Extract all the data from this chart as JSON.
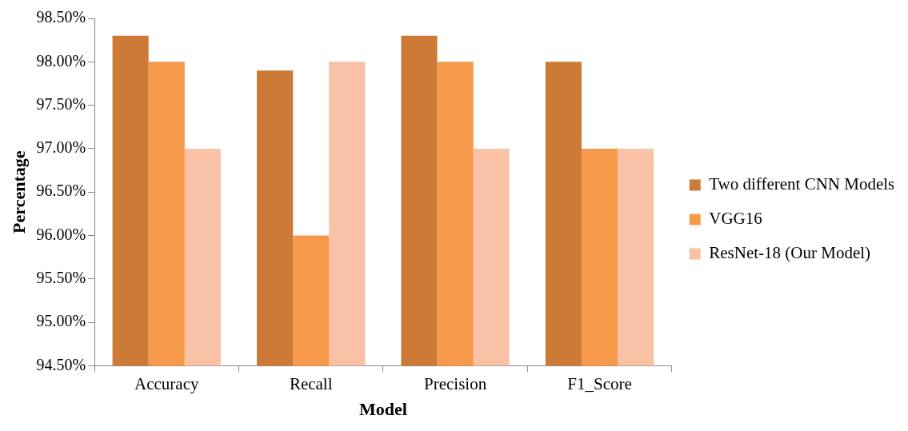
{
  "chart_data": {
    "type": "bar",
    "xlabel": "Model",
    "ylabel": "Percentage",
    "categories": [
      "Accuracy",
      "Recall",
      "Precision",
      "F1_Score"
    ],
    "series": [
      {
        "name": "Two different CNN Models",
        "color": "#cc7a36",
        "values": [
          98.3,
          97.9,
          98.3,
          98.0
        ]
      },
      {
        "name": "VGG16",
        "color": "#f7994a",
        "values": [
          98.0,
          96.0,
          98.0,
          97.0
        ]
      },
      {
        "name": "ResNet-18 (Our Model)",
        "color": "#f9c1a6",
        "values": [
          97.0,
          98.0,
          97.0,
          97.0
        ]
      }
    ],
    "ylim": [
      94.5,
      98.5
    ],
    "yticks": [
      {
        "value": 94.5,
        "label": "94.50%"
      },
      {
        "value": 95,
        "label": "95.00%"
      },
      {
        "value": 95.5,
        "label": "95.50%"
      },
      {
        "value": 96,
        "label": "96.00%"
      },
      {
        "value": 96.5,
        "label": "96.50%"
      },
      {
        "value": 97,
        "label": "97.00%"
      },
      {
        "value": 97.5,
        "label": "97.50%"
      },
      {
        "value": 98,
        "label": "98.00%"
      },
      {
        "value": 98.5,
        "label": "98.50%"
      }
    ],
    "grid": false,
    "legend": "right"
  }
}
